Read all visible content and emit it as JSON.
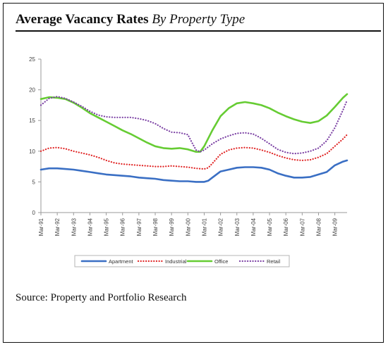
{
  "title": {
    "main": "Average Vacancy Rates",
    "sub": "By Property Type"
  },
  "source_text": "Source: Property and Portfolio Research",
  "chart_data": {
    "type": "line",
    "ylim": [
      0,
      25
    ],
    "yticks": [
      "0",
      "5",
      "10",
      "15",
      "20",
      "25"
    ],
    "xlim": [
      1991.0,
      2009.75
    ],
    "xtick_labels": [
      "Mar-91",
      "Mar-92",
      "Mar-93",
      "Mar-94",
      "Mar-95",
      "Mar-96",
      "Mar-97",
      "Mar-98",
      "Mar-99",
      "Mar-00",
      "Mar-01",
      "Mar-02",
      "Mar-03",
      "Mar-04",
      "Mar-05",
      "Mar-06",
      "Mar-07",
      "Mar-08",
      "Mar-09"
    ],
    "series": [
      {
        "name": "Apartment",
        "color": "#3a6fc4",
        "style": "solid",
        "points": [
          [
            1991.0,
            7.0
          ],
          [
            1991.5,
            7.2
          ],
          [
            1992.0,
            7.2
          ],
          [
            1992.5,
            7.1
          ],
          [
            1993.0,
            7.0
          ],
          [
            1993.5,
            6.8
          ],
          [
            1994.0,
            6.6
          ],
          [
            1994.5,
            6.4
          ],
          [
            1995.0,
            6.2
          ],
          [
            1995.5,
            6.1
          ],
          [
            1996.0,
            6.0
          ],
          [
            1996.5,
            5.9
          ],
          [
            1997.0,
            5.7
          ],
          [
            1997.5,
            5.6
          ],
          [
            1998.0,
            5.5
          ],
          [
            1998.5,
            5.3
          ],
          [
            1999.0,
            5.2
          ],
          [
            1999.5,
            5.1
          ],
          [
            2000.0,
            5.1
          ],
          [
            2000.5,
            5.0
          ],
          [
            2001.0,
            5.0
          ],
          [
            2001.25,
            5.2
          ],
          [
            2001.5,
            5.7
          ],
          [
            2002.0,
            6.7
          ],
          [
            2002.5,
            7.0
          ],
          [
            2003.0,
            7.3
          ],
          [
            2003.5,
            7.4
          ],
          [
            2004.0,
            7.4
          ],
          [
            2004.5,
            7.3
          ],
          [
            2005.0,
            7.0
          ],
          [
            2005.5,
            6.4
          ],
          [
            2006.0,
            6.0
          ],
          [
            2006.5,
            5.7
          ],
          [
            2007.0,
            5.7
          ],
          [
            2007.5,
            5.8
          ],
          [
            2008.0,
            6.2
          ],
          [
            2008.5,
            6.6
          ],
          [
            2009.0,
            7.7
          ],
          [
            2009.5,
            8.3
          ],
          [
            2009.75,
            8.5
          ]
        ]
      },
      {
        "name": "Industrial",
        "color": "#e02424",
        "style": "dotted",
        "points": [
          [
            1991.0,
            10.0
          ],
          [
            1991.5,
            10.5
          ],
          [
            1992.0,
            10.6
          ],
          [
            1992.5,
            10.4
          ],
          [
            1993.0,
            10.0
          ],
          [
            1993.5,
            9.7
          ],
          [
            1994.0,
            9.4
          ],
          [
            1994.5,
            9.0
          ],
          [
            1995.0,
            8.5
          ],
          [
            1995.5,
            8.1
          ],
          [
            1996.0,
            7.9
          ],
          [
            1996.5,
            7.8
          ],
          [
            1997.0,
            7.7
          ],
          [
            1997.5,
            7.6
          ],
          [
            1998.0,
            7.5
          ],
          [
            1998.5,
            7.5
          ],
          [
            1999.0,
            7.6
          ],
          [
            1999.5,
            7.5
          ],
          [
            2000.0,
            7.4
          ],
          [
            2000.5,
            7.2
          ],
          [
            2001.0,
            7.1
          ],
          [
            2001.25,
            7.3
          ],
          [
            2001.5,
            8.0
          ],
          [
            2002.0,
            9.5
          ],
          [
            2002.5,
            10.2
          ],
          [
            2003.0,
            10.5
          ],
          [
            2003.5,
            10.6
          ],
          [
            2004.0,
            10.5
          ],
          [
            2004.5,
            10.2
          ],
          [
            2005.0,
            9.8
          ],
          [
            2005.5,
            9.3
          ],
          [
            2006.0,
            8.9
          ],
          [
            2006.5,
            8.6
          ],
          [
            2007.0,
            8.5
          ],
          [
            2007.5,
            8.6
          ],
          [
            2008.0,
            9.0
          ],
          [
            2008.5,
            9.6
          ],
          [
            2009.0,
            10.8
          ],
          [
            2009.5,
            12.0
          ],
          [
            2009.75,
            12.7
          ]
        ]
      },
      {
        "name": "Office",
        "color": "#66cc33",
        "style": "solid",
        "points": [
          [
            1991.0,
            18.5
          ],
          [
            1991.5,
            18.8
          ],
          [
            1992.0,
            18.7
          ],
          [
            1992.5,
            18.5
          ],
          [
            1993.0,
            17.9
          ],
          [
            1993.5,
            17.1
          ],
          [
            1994.0,
            16.2
          ],
          [
            1994.5,
            15.5
          ],
          [
            1995.0,
            14.8
          ],
          [
            1995.5,
            14.1
          ],
          [
            1996.0,
            13.4
          ],
          [
            1996.5,
            12.8
          ],
          [
            1997.0,
            12.1
          ],
          [
            1997.5,
            11.4
          ],
          [
            1998.0,
            10.8
          ],
          [
            1998.5,
            10.5
          ],
          [
            1999.0,
            10.4
          ],
          [
            1999.5,
            10.5
          ],
          [
            2000.0,
            10.3
          ],
          [
            2000.5,
            9.9
          ],
          [
            2000.75,
            9.9
          ],
          [
            2001.0,
            10.8
          ],
          [
            2001.5,
            13.4
          ],
          [
            2002.0,
            15.7
          ],
          [
            2002.5,
            17.0
          ],
          [
            2003.0,
            17.8
          ],
          [
            2003.5,
            18.0
          ],
          [
            2004.0,
            17.8
          ],
          [
            2004.5,
            17.5
          ],
          [
            2005.0,
            17.0
          ],
          [
            2005.5,
            16.3
          ],
          [
            2006.0,
            15.7
          ],
          [
            2006.5,
            15.2
          ],
          [
            2007.0,
            14.8
          ],
          [
            2007.5,
            14.6
          ],
          [
            2008.0,
            14.9
          ],
          [
            2008.5,
            15.8
          ],
          [
            2009.0,
            17.2
          ],
          [
            2009.5,
            18.7
          ],
          [
            2009.75,
            19.3
          ]
        ]
      },
      {
        "name": "Retail",
        "color": "#7a3fa3",
        "style": "dotted",
        "points": [
          [
            1991.0,
            17.5
          ],
          [
            1991.5,
            18.6
          ],
          [
            1992.0,
            18.9
          ],
          [
            1992.5,
            18.6
          ],
          [
            1993.0,
            18.0
          ],
          [
            1993.5,
            17.3
          ],
          [
            1994.0,
            16.5
          ],
          [
            1994.5,
            15.9
          ],
          [
            1995.0,
            15.6
          ],
          [
            1995.5,
            15.5
          ],
          [
            1996.0,
            15.5
          ],
          [
            1996.5,
            15.5
          ],
          [
            1997.0,
            15.3
          ],
          [
            1997.5,
            15.0
          ],
          [
            1998.0,
            14.5
          ],
          [
            1998.5,
            13.7
          ],
          [
            1999.0,
            13.1
          ],
          [
            1999.5,
            13.0
          ],
          [
            2000.0,
            12.7
          ],
          [
            2000.25,
            11.4
          ],
          [
            2000.5,
            10.2
          ],
          [
            2000.75,
            9.9
          ],
          [
            2001.0,
            10.2
          ],
          [
            2001.5,
            11.2
          ],
          [
            2002.0,
            12.0
          ],
          [
            2002.5,
            12.5
          ],
          [
            2003.0,
            12.9
          ],
          [
            2003.5,
            13.0
          ],
          [
            2004.0,
            12.8
          ],
          [
            2004.5,
            12.1
          ],
          [
            2005.0,
            11.2
          ],
          [
            2005.5,
            10.3
          ],
          [
            2006.0,
            9.8
          ],
          [
            2006.5,
            9.6
          ],
          [
            2007.0,
            9.7
          ],
          [
            2007.5,
            10.0
          ],
          [
            2008.0,
            10.5
          ],
          [
            2008.5,
            11.7
          ],
          [
            2009.0,
            13.8
          ],
          [
            2009.5,
            16.7
          ],
          [
            2009.75,
            18.3
          ]
        ]
      }
    ],
    "legend": {
      "placement": "bottom",
      "entries": [
        "Apartment",
        "Industrial",
        "Office",
        "Retail"
      ]
    }
  }
}
